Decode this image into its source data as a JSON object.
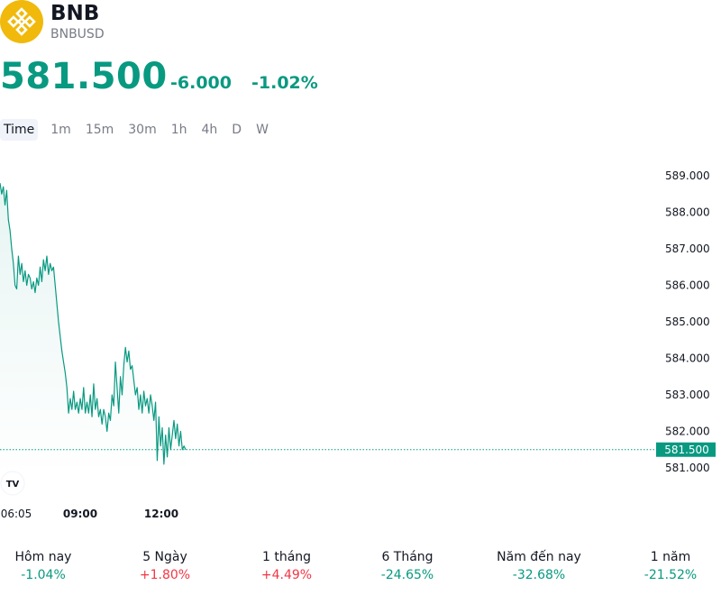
{
  "header": {
    "symbol": "BNB",
    "ticker": "BNBUSD",
    "price": "581.500",
    "change": "-6.000",
    "change_percent": "-1.02%",
    "price_color": "#089981",
    "logo_color": "#f0b90b"
  },
  "timeframes": [
    "Time",
    "1m",
    "15m",
    "30m",
    "1h",
    "4h",
    "D",
    "W"
  ],
  "active_timeframe": "Time",
  "chart_data": {
    "type": "line",
    "x_labels": [
      "06:05",
      "09:00",
      "12:00"
    ],
    "y_ticks": [
      "589.000",
      "588.000",
      "587.000",
      "586.000",
      "585.000",
      "584.000",
      "583.000",
      "582.000",
      "581.000"
    ],
    "ylim": [
      580.5,
      589.5
    ],
    "current_price_label": "581.500",
    "current_price": 581.5,
    "line_color": "#089981",
    "grid": false,
    "series": [
      {
        "values": [
          588.8,
          588.5,
          588.7,
          588.2,
          588.6,
          587.8,
          587.5,
          587.0,
          586.6,
          586.0,
          585.9,
          586.8,
          586.3,
          586.6,
          586.1,
          586.4,
          586.0,
          586.3,
          586.2,
          585.9,
          586.1,
          585.8,
          586.2,
          586.0,
          586.5,
          586.1,
          586.7,
          586.4,
          586.8,
          586.3,
          586.6,
          586.4,
          586.5,
          586.0,
          585.5,
          585.0,
          584.6,
          584.2,
          583.9,
          583.6,
          583.2,
          582.5,
          582.9,
          582.6,
          583.1,
          582.6,
          582.8,
          582.5,
          582.9,
          582.6,
          583.2,
          582.5,
          582.8,
          582.5,
          583.0,
          582.4,
          583.3,
          582.6,
          582.9,
          582.4,
          582.6,
          582.2,
          582.6,
          582.4,
          582.0,
          582.5,
          582.3,
          583.0,
          582.7,
          583.9,
          583.2,
          582.5,
          583.5,
          583.0,
          583.8,
          584.3,
          583.9,
          584.2,
          583.7,
          583.8,
          583.4,
          583.0,
          583.2,
          582.6,
          583.0,
          582.5,
          583.1,
          582.7,
          582.9,
          582.5,
          583.0,
          582.7,
          582.3,
          582.8,
          581.2,
          582.4,
          581.6,
          582.1,
          581.1,
          581.9,
          581.3,
          582.1,
          581.5,
          581.9,
          582.3,
          581.8,
          582.2,
          581.6,
          582.0,
          581.5,
          581.6,
          581.5
        ]
      }
    ]
  },
  "performance": [
    {
      "label": "Hôm nay",
      "value": "-1.04%",
      "color": "#089981"
    },
    {
      "label": "5 Ngày",
      "value": "+1.80%",
      "color": "#f23645"
    },
    {
      "label": "1 tháng",
      "value": "+4.49%",
      "color": "#f23645"
    },
    {
      "label": "6 Tháng",
      "value": "-24.65%",
      "color": "#089981"
    },
    {
      "label": "Năm đến nay",
      "value": "-32.68%",
      "color": "#089981"
    },
    {
      "label": "1 năm",
      "value": "-21.52%",
      "color": "#089981"
    }
  ],
  "tv_logo": "TV"
}
